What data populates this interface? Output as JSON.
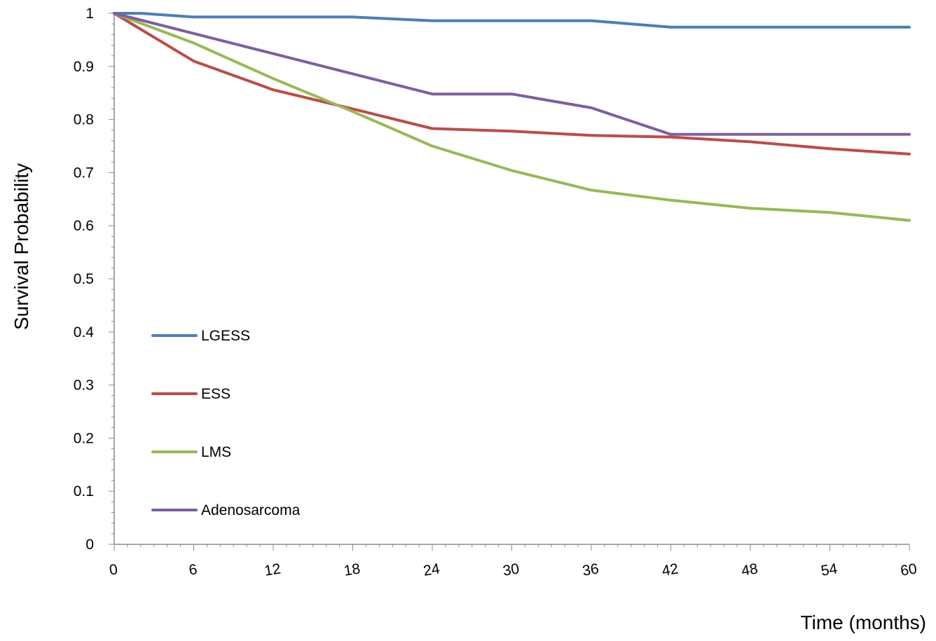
{
  "chart_data": {
    "type": "line",
    "title": "",
    "xlabel": "Time (months)",
    "ylabel": "Survival Probability",
    "xlim": [
      0,
      60
    ],
    "ylim": [
      0,
      1
    ],
    "x_ticks": [
      0,
      6,
      12,
      18,
      24,
      30,
      36,
      42,
      48,
      54,
      60
    ],
    "y_ticks": [
      0,
      0.1,
      0.2,
      0.3,
      0.4,
      0.5,
      0.6,
      0.7,
      0.8,
      0.9,
      1
    ],
    "y_tick_labels": [
      "0",
      "0.1",
      "0.2",
      "0.3",
      "0.4",
      "0.5",
      "0.6",
      "0.7",
      "0.8",
      "0.9",
      "1"
    ],
    "grid": false,
    "legend_position": "lower-left inside plot",
    "series": [
      {
        "name": "LGESS",
        "color": "#4a7ebb",
        "x": [
          0,
          2,
          6,
          12,
          18,
          24,
          30,
          36,
          42,
          48,
          54,
          60
        ],
        "y": [
          1.0,
          1.0,
          0.993,
          0.993,
          0.993,
          0.986,
          0.986,
          0.986,
          0.974,
          0.974,
          0.974,
          0.974
        ]
      },
      {
        "name": "ESS",
        "color": "#be4b48",
        "x": [
          0,
          6,
          12,
          18,
          24,
          30,
          36,
          42,
          48,
          54,
          60
        ],
        "y": [
          1.0,
          0.91,
          0.856,
          0.82,
          0.783,
          0.778,
          0.77,
          0.767,
          0.758,
          0.745,
          0.735
        ]
      },
      {
        "name": "LMS",
        "color": "#98b954",
        "x": [
          0,
          6,
          12,
          18,
          24,
          30,
          36,
          42,
          48,
          54,
          60
        ],
        "y": [
          1.0,
          0.944,
          0.877,
          0.815,
          0.75,
          0.704,
          0.667,
          0.648,
          0.633,
          0.625,
          0.61
        ]
      },
      {
        "name": "Adenosarcoma",
        "color": "#7d5fa0",
        "x": [
          0,
          6,
          12,
          18,
          24,
          30,
          36,
          42,
          48,
          54,
          60
        ],
        "y": [
          1.0,
          0.962,
          0.924,
          0.886,
          0.848,
          0.848,
          0.822,
          0.772,
          0.772,
          0.772,
          0.772
        ]
      }
    ]
  }
}
